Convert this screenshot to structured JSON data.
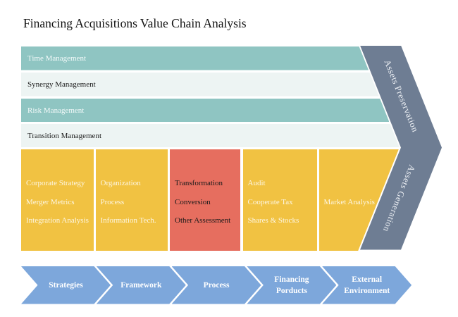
{
  "title": "Financing Acquisitions Value Chain Analysis",
  "management_rows": [
    {
      "label": "Time Management",
      "variant": "teal"
    },
    {
      "label": "Synergy Management",
      "variant": "light"
    },
    {
      "label": "Risk Management",
      "variant": "teal"
    },
    {
      "label": "Transition Management",
      "variant": "light"
    }
  ],
  "activity_columns": [
    {
      "variant": "yellow",
      "items": [
        "Corporate Strategy",
        "Merger Metrics",
        "Integration Analysis"
      ]
    },
    {
      "variant": "yellow",
      "items": [
        "Organization",
        "Process",
        "Information Tech."
      ]
    },
    {
      "variant": "red",
      "items": [
        "Transformation",
        "Conversion",
        "Other Assessment"
      ]
    },
    {
      "variant": "yellow",
      "items": [
        "Audit",
        "Cooperate Tax",
        "Shares & Stocks"
      ]
    },
    {
      "variant": "yellow",
      "items": [
        "Market Analysis"
      ]
    }
  ],
  "chevron_band": {
    "upper_label": "Assets Preservation",
    "lower_label": "Assets Generation"
  },
  "bottom_arrows": [
    {
      "label": "Strategies"
    },
    {
      "label": "Framework"
    },
    {
      "label": "Process"
    },
    {
      "label": "Financing Porducts"
    },
    {
      "label": "External Environment"
    }
  ],
  "colors": {
    "teal_row": "#8fc5c2",
    "light_row": "#edf4f3",
    "yellow_column": "#f1c242",
    "red_column": "#e66e5f",
    "chevron_band": "#6e7d93",
    "bottom_arrow": "#7da7db",
    "title_text": "#111111"
  }
}
